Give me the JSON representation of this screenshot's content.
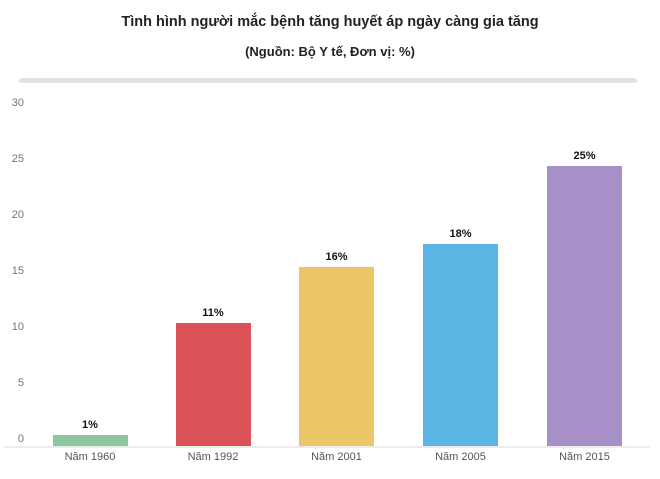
{
  "chart": {
    "title": "Tình hình người mắc bệnh tăng huyết áp ngày càng gia tăng",
    "subtitle": "(Nguồn: Bộ Y tế, Đơn vị: %)"
  },
  "chart_data": {
    "type": "bar",
    "title": "Tình hình người mắc bệnh tăng huyết áp ngày càng gia tăng",
    "subtitle": "(Nguồn: Bộ Y tế, Đơn vị: %)",
    "unit": "%",
    "categories": [
      "Năm 1960",
      "Năm 1992",
      "Năm 2001",
      "Năm 2005",
      "Năm 2015"
    ],
    "values": [
      1,
      11,
      16,
      18,
      25
    ],
    "value_labels": [
      "1%",
      "11%",
      "16%",
      "18%",
      "25%"
    ],
    "bar_colors": [
      "#8cc6a0",
      "#db5359",
      "#ebc768",
      "#5ab4e4",
      "#a78fc8"
    ],
    "xlabel": "",
    "ylabel": "",
    "ylim": [
      0,
      30
    ],
    "yticks": [
      0,
      5,
      10,
      15,
      20,
      25,
      30
    ],
    "grid": false,
    "legend": "none",
    "colors": {
      "title_text": "#222222",
      "axis_text": "#757575",
      "category_text": "#555555",
      "value_label_text": "#111111",
      "axis_line": "#ececec",
      "scrollbar": "#e2e2e2",
      "background": "#ffffff"
    }
  }
}
